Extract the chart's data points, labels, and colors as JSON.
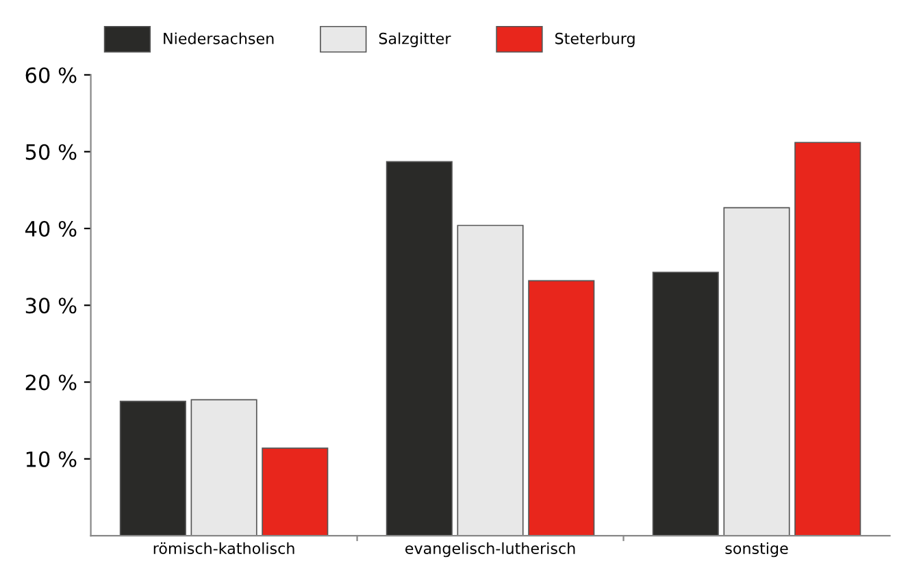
{
  "chart_data": {
    "type": "bar",
    "categories": [
      "römisch-katholisch",
      "evangelisch-lutherisch",
      "sonstige"
    ],
    "series": [
      {
        "name": "Niedersachsen",
        "color": "#2a2a28",
        "values": [
          17.5,
          48.7,
          34.3
        ]
      },
      {
        "name": "Salzgitter",
        "color": "#e8e8e8",
        "values": [
          17.7,
          40.4,
          42.7
        ]
      },
      {
        "name": "Steterburg",
        "color": "#e8261c",
        "values": [
          11.4,
          33.2,
          51.2
        ]
      }
    ],
    "ylim": [
      0,
      60
    ],
    "yticks": [
      {
        "value": 10,
        "label": "10 %"
      },
      {
        "value": 20,
        "label": "20 %"
      },
      {
        "value": 30,
        "label": "30 %"
      },
      {
        "value": 40,
        "label": "40 %"
      },
      {
        "value": 50,
        "label": "50 %"
      },
      {
        "value": 60,
        "label": "60 %"
      }
    ],
    "grid": false,
    "legend": "top"
  }
}
